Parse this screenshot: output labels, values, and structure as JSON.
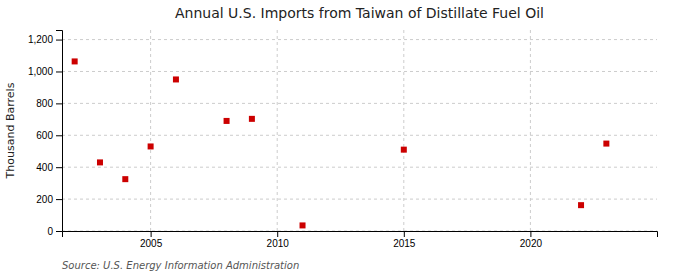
{
  "chart_data": {
    "type": "scatter",
    "title": "Annual U.S. Imports from Taiwan of Distillate Fuel Oil",
    "ylabel": "Thousand Barrels",
    "source": "Source: U.S. Energy Information Administration",
    "x": [
      2002,
      2003,
      2004,
      2005,
      2006,
      2008,
      2009,
      2011,
      2015,
      2022,
      2023
    ],
    "values": [
      1063,
      430,
      325,
      530,
      950,
      690,
      703,
      35,
      510,
      162,
      548
    ],
    "color": "#cc0000",
    "marker": "square",
    "xlim": [
      2001.5,
      2025
    ],
    "ylim": [
      0,
      1260
    ],
    "xticks": [
      2005,
      2010,
      2015,
      2020
    ],
    "yticks": [
      0,
      200,
      400,
      600,
      800,
      {
        "value": 1000,
        "label": "1,000"
      },
      {
        "value": 1200,
        "label": "1,200"
      }
    ],
    "grid": true
  }
}
